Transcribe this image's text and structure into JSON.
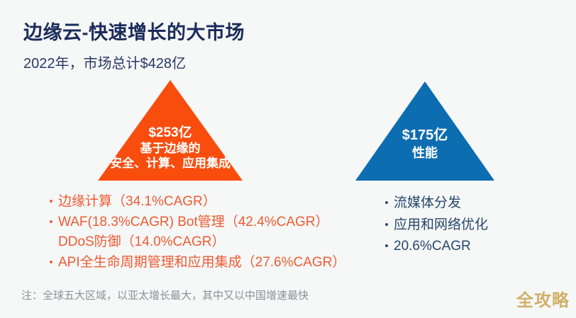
{
  "slide": {
    "title": "边缘云-快速增长的大市场",
    "subtitle": "2022年，市场总计$428亿",
    "note": "注：全球五大区域，以亚太增长最大，其中又以中国增速最快",
    "watermark": "全攻略"
  },
  "colors": {
    "background": "#F6F7F7",
    "title_navy": "#1B2C5B",
    "pyramid_orange": "#F94D0E",
    "pyramid_blue": "#0D6DB1",
    "orange_list_text": "#EE5B31",
    "blue_list_text": "#25486B",
    "note_gray": "#8A9099",
    "watermark_gold": "#C9A350"
  },
  "left_pyramid": {
    "value": "$253亿",
    "line2": "基于边缘的",
    "line3": "安全、计算、应用集成",
    "bullets": [
      {
        "lines": [
          "边缘计算（34.1%CAGR）"
        ]
      },
      {
        "lines": [
          "WAF(18.3%CAGR) Bot管理（42.4%CAGR）",
          "DDoS防御（14.0%CAGR）"
        ]
      },
      {
        "lines": [
          "API全生命周期管理和应用集成（27.6%CAGR）"
        ]
      }
    ]
  },
  "right_pyramid": {
    "value": "$175亿",
    "label": "性能",
    "bullets": [
      {
        "lines": [
          "流媒体分发"
        ]
      },
      {
        "lines": [
          "应用和网络优化"
        ]
      },
      {
        "lines": [
          "20.6%CAGR"
        ]
      }
    ]
  },
  "bullet_glyph": "•"
}
